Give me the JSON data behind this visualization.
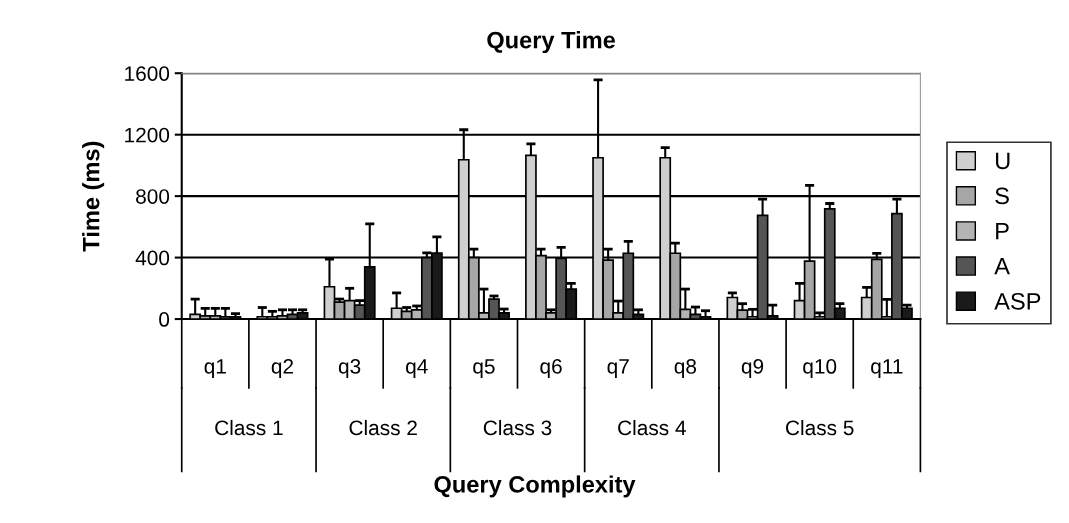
{
  "chart_data": {
    "type": "bar",
    "title": "Query Time",
    "xlabel": "Query Complexity",
    "ylabel": "Time (ms)",
    "categories": [
      "q1",
      "q2",
      "q3",
      "q4",
      "q5",
      "q6",
      "q7",
      "q8",
      "q9",
      "q10",
      "q11"
    ],
    "annotations": [
      "Class 1",
      "Class 2",
      "Class 3",
      "Class 4",
      "Class 5"
    ],
    "series": [
      {
        "name": "U",
        "color": "#cfcfcf",
        "values": [
          30,
          15,
          210,
          70,
          1037,
          1065,
          1050,
          1050,
          140,
          120,
          140
        ],
        "errors": [
          [
            30,
            130
          ],
          [
            15,
            75
          ],
          [
            210,
            390
          ],
          [
            70,
            170
          ],
          [
            1037,
            1232
          ],
          [
            1065,
            1140
          ],
          [
            1050,
            1557
          ],
          [
            1050,
            1115
          ],
          [
            140,
            170
          ],
          [
            120,
            232
          ],
          [
            140,
            206
          ]
        ]
      },
      {
        "name": "S",
        "color": "#a6a6a6",
        "values": [
          20,
          15,
          110,
          50,
          400,
          413,
          383,
          428,
          58,
          377,
          388
        ],
        "errors": [
          [
            20,
            70
          ],
          [
            15,
            50
          ],
          [
            110,
            130
          ],
          [
            50,
            75
          ],
          [
            400,
            455
          ],
          [
            413,
            455
          ],
          [
            383,
            455
          ],
          [
            428,
            494
          ],
          [
            58,
            100
          ],
          [
            377,
            870
          ],
          [
            388,
            427
          ]
        ]
      },
      {
        "name": "P",
        "color": "#b4b4b4",
        "values": [
          20,
          20,
          120,
          60,
          40,
          40,
          40,
          63,
          15,
          15,
          15
        ],
        "errors": [
          [
            20,
            70
          ],
          [
            20,
            60
          ],
          [
            120,
            200
          ],
          [
            60,
            85
          ],
          [
            40,
            195
          ],
          [
            40,
            60
          ],
          [
            40,
            117
          ],
          [
            63,
            195
          ],
          [
            15,
            63
          ],
          [
            15,
            40
          ],
          [
            15,
            128
          ]
        ]
      },
      {
        "name": "A",
        "color": "#555555",
        "values": [
          15,
          30,
          90,
          400,
          130,
          394,
          428,
          30,
          675,
          717,
          686
        ],
        "errors": [
          [
            15,
            70
          ],
          [
            30,
            60
          ],
          [
            90,
            120
          ],
          [
            400,
            430
          ],
          [
            130,
            150
          ],
          [
            394,
            466
          ],
          [
            428,
            506
          ],
          [
            30,
            78
          ],
          [
            675,
            780
          ],
          [
            717,
            752
          ],
          [
            686,
            780
          ]
        ]
      },
      {
        "name": "ASP",
        "color": "#1a1a1a",
        "values": [
          15,
          40,
          340,
          430,
          40,
          195,
          30,
          15,
          20,
          70,
          70
        ],
        "errors": [
          [
            15,
            35
          ],
          [
            40,
            60
          ],
          [
            340,
            620
          ],
          [
            430,
            535
          ],
          [
            40,
            65
          ],
          [
            195,
            232
          ],
          [
            30,
            60
          ],
          [
            15,
            54
          ],
          [
            20,
            90
          ],
          [
            70,
            100
          ],
          [
            70,
            90
          ]
        ]
      }
    ],
    "ylim": [
      0,
      1600
    ],
    "yticks": [
      0,
      400,
      800,
      1200,
      1600
    ],
    "grid": "y",
    "legend": "right"
  }
}
